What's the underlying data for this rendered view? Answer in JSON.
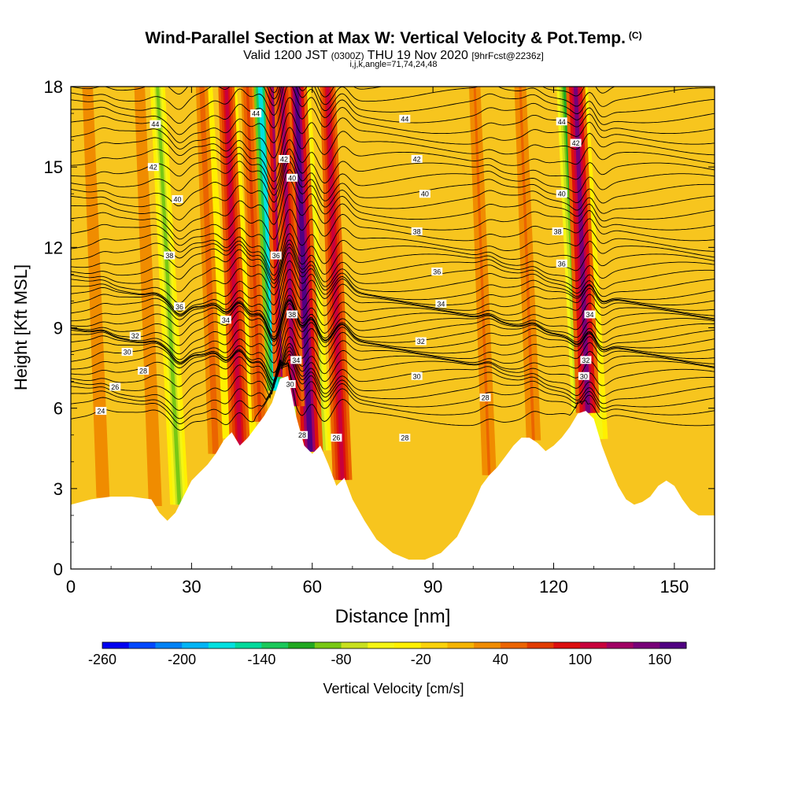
{
  "title_main": "Wind-Parallel Section at Max W: Vertical Velocity & Pot.Temp.",
  "title_copyright": "(C)",
  "title_valid": "Valid 1200 JST",
  "title_utc": "(0300Z)",
  "title_date": "THU 19 Nov 2020",
  "title_fcst": "[9hrFcst@2236z]",
  "title_params": "i,j,k,angle=71,74,24,48",
  "chart_data": {
    "type": "heatmap",
    "xlabel": "Distance [nm]",
    "ylabel": "Height [Kft MSL]",
    "xlim": [
      0,
      160
    ],
    "ylim": [
      0,
      18
    ],
    "x_ticks": [
      0,
      30,
      60,
      90,
      120,
      150
    ],
    "y_ticks": [
      0,
      3,
      6,
      9,
      12,
      15,
      18
    ],
    "background_color": "#f7c51e",
    "colorbar": {
      "label": "Vertical Velocity [cm/s]",
      "tick_labels": [
        -260,
        -200,
        -140,
        -80,
        -20,
        40,
        100,
        160
      ],
      "range": [
        -260,
        180
      ],
      "step": 20,
      "colors": [
        "#0000f0",
        "#0048ff",
        "#0082f5",
        "#00b4f5",
        "#00e0e0",
        "#00d99b",
        "#1ac85a",
        "#21a821",
        "#78c814",
        "#c8e01e",
        "#f5f514",
        "#fff000",
        "#fad20a",
        "#f5b400",
        "#f08c00",
        "#eb6400",
        "#e13c00",
        "#dc0f0f",
        "#c8003c",
        "#a00064",
        "#780078",
        "#500082"
      ]
    },
    "terrain_kft": {
      "x": [
        0,
        5,
        10,
        15,
        20,
        22,
        24,
        26,
        28,
        30,
        32,
        34,
        36,
        38,
        40,
        42,
        44,
        46,
        48,
        50,
        52,
        54,
        56,
        58,
        60,
        62,
        64,
        66,
        68,
        70,
        73,
        76,
        80,
        84,
        88,
        92,
        96,
        100,
        102,
        104,
        106,
        108,
        110,
        112,
        114,
        116,
        118,
        120,
        122,
        124,
        126,
        128,
        130,
        132,
        134,
        136,
        138,
        140,
        142,
        144,
        146,
        148,
        150,
        152,
        154,
        156,
        158,
        160
      ],
      "y": [
        2.4,
        2.6,
        2.7,
        2.7,
        2.6,
        2.1,
        1.8,
        2.1,
        2.7,
        3.3,
        3.6,
        3.9,
        4.3,
        4.8,
        5.1,
        4.6,
        4.9,
        5.3,
        5.7,
        6.2,
        7.1,
        7.2,
        5.7,
        4.6,
        4.3,
        4.6,
        3.9,
        3.1,
        3.4,
        2.6,
        1.8,
        1.1,
        0.6,
        0.35,
        0.35,
        0.6,
        1.2,
        2.4,
        3.1,
        3.5,
        3.8,
        4.2,
        4.6,
        4.9,
        4.9,
        4.7,
        4.4,
        4.6,
        4.9,
        5.3,
        5.8,
        5.9,
        5.6,
        4.6,
        3.8,
        3.1,
        2.6,
        2.4,
        2.5,
        2.7,
        3.1,
        3.3,
        3.1,
        2.6,
        2.2,
        2.0,
        2.0,
        2.0
      ]
    },
    "updrafts_cm_s": [
      {
        "x": 53.5,
        "peak": 170
      },
      {
        "x": 59.5,
        "peak": 170
      },
      {
        "x": 55.5,
        "peak": 120
      },
      {
        "x": 42,
        "peak": 110
      },
      {
        "x": 47,
        "peak": 60
      },
      {
        "x": 67.5,
        "peak": 100
      },
      {
        "x": 128.5,
        "peak": 150
      },
      {
        "x": 36,
        "peak": 50
      },
      {
        "x": 21,
        "peak": 30
      },
      {
        "x": 8,
        "peak": 30
      },
      {
        "x": 115,
        "peak": 45
      },
      {
        "x": 104,
        "peak": 40
      }
    ],
    "downdrafts_cm_s": [
      {
        "x": 51,
        "peak": -180
      },
      {
        "x": 57.5,
        "peak": -140
      },
      {
        "x": 62.5,
        "peak": -80
      },
      {
        "x": 27,
        "peak": -90
      },
      {
        "x": 127,
        "peak": -110
      },
      {
        "x": 131.5,
        "peak": -60
      },
      {
        "x": 44.5,
        "peak": -30
      },
      {
        "x": 38.5,
        "peak": -30
      }
    ],
    "theta_contour_labels": [
      {
        "x": 7.5,
        "y": 5.9,
        "text": "24"
      },
      {
        "x": 11,
        "y": 6.8,
        "text": "26"
      },
      {
        "x": 18,
        "y": 7.4,
        "text": "28"
      },
      {
        "x": 14,
        "y": 8.1,
        "text": "30"
      },
      {
        "x": 16,
        "y": 8.7,
        "text": "32"
      },
      {
        "x": 38.5,
        "y": 9.3,
        "text": "34"
      },
      {
        "x": 27,
        "y": 9.8,
        "text": "36"
      },
      {
        "x": 24.5,
        "y": 11.7,
        "text": "38"
      },
      {
        "x": 26.5,
        "y": 13.8,
        "text": "40"
      },
      {
        "x": 20.5,
        "y": 15.0,
        "text": "42"
      },
      {
        "x": 21,
        "y": 16.6,
        "text": "44"
      },
      {
        "x": 46,
        "y": 17.0,
        "text": "44"
      },
      {
        "x": 53,
        "y": 15.3,
        "text": "42"
      },
      {
        "x": 55,
        "y": 14.6,
        "text": "40"
      },
      {
        "x": 51,
        "y": 11.7,
        "text": "36"
      },
      {
        "x": 55,
        "y": 9.5,
        "text": "38"
      },
      {
        "x": 56,
        "y": 7.8,
        "text": "34"
      },
      {
        "x": 54.5,
        "y": 6.9,
        "text": "30"
      },
      {
        "x": 57.5,
        "y": 5.0,
        "text": "28"
      },
      {
        "x": 66,
        "y": 4.9,
        "text": "26"
      },
      {
        "x": 83,
        "y": 4.9,
        "text": "28"
      },
      {
        "x": 103,
        "y": 6.4,
        "text": "28"
      },
      {
        "x": 86,
        "y": 7.2,
        "text": "30"
      },
      {
        "x": 87,
        "y": 8.5,
        "text": "32"
      },
      {
        "x": 92,
        "y": 9.9,
        "text": "34"
      },
      {
        "x": 91,
        "y": 11.1,
        "text": "36"
      },
      {
        "x": 86,
        "y": 12.6,
        "text": "38"
      },
      {
        "x": 88,
        "y": 14.0,
        "text": "40"
      },
      {
        "x": 86,
        "y": 15.3,
        "text": "42"
      },
      {
        "x": 83,
        "y": 16.8,
        "text": "44"
      },
      {
        "x": 122,
        "y": 16.7,
        "text": "44"
      },
      {
        "x": 125.5,
        "y": 15.9,
        "text": "42"
      },
      {
        "x": 122,
        "y": 14.0,
        "text": "40"
      },
      {
        "x": 121,
        "y": 12.6,
        "text": "38"
      },
      {
        "x": 122,
        "y": 11.4,
        "text": "36"
      },
      {
        "x": 129,
        "y": 9.5,
        "text": "34"
      },
      {
        "x": 128,
        "y": 7.8,
        "text": "32"
      },
      {
        "x": 127.5,
        "y": 7.2,
        "text": "30"
      }
    ],
    "theta_levels_K": [
      24,
      24.5,
      25,
      25.5,
      26,
      26.5,
      27,
      27.5,
      28,
      28.5,
      29,
      29.5,
      30,
      30.5,
      31,
      31.5,
      32,
      32.5,
      33,
      33.5,
      34,
      34.5,
      35,
      35.5,
      36,
      36.5,
      37,
      37.5,
      38,
      38.5,
      39,
      39.5,
      40,
      40.5,
      41,
      41.5,
      42,
      42.5,
      43,
      43.5,
      44,
      44.5,
      45
    ],
    "theta_surface_heights_kft": [
      5.6,
      6.0,
      6.3,
      6.6,
      6.9,
      7.2,
      7.5,
      7.7,
      7.9,
      8.1,
      8.3,
      8.5,
      8.7,
      8.9,
      9.1,
      9.3,
      9.5,
      9.7,
      9.9,
      10.1,
      10.3,
      10.6,
      10.9,
      11.2,
      11.5,
      11.8,
      12.1,
      12.5,
      12.9,
      13.3,
      13.7,
      14.1,
      14.5,
      14.9,
      15.3,
      15.7,
      16.1,
      16.5,
      16.9,
      17.3,
      17.7,
      18.1,
      18.5
    ]
  }
}
